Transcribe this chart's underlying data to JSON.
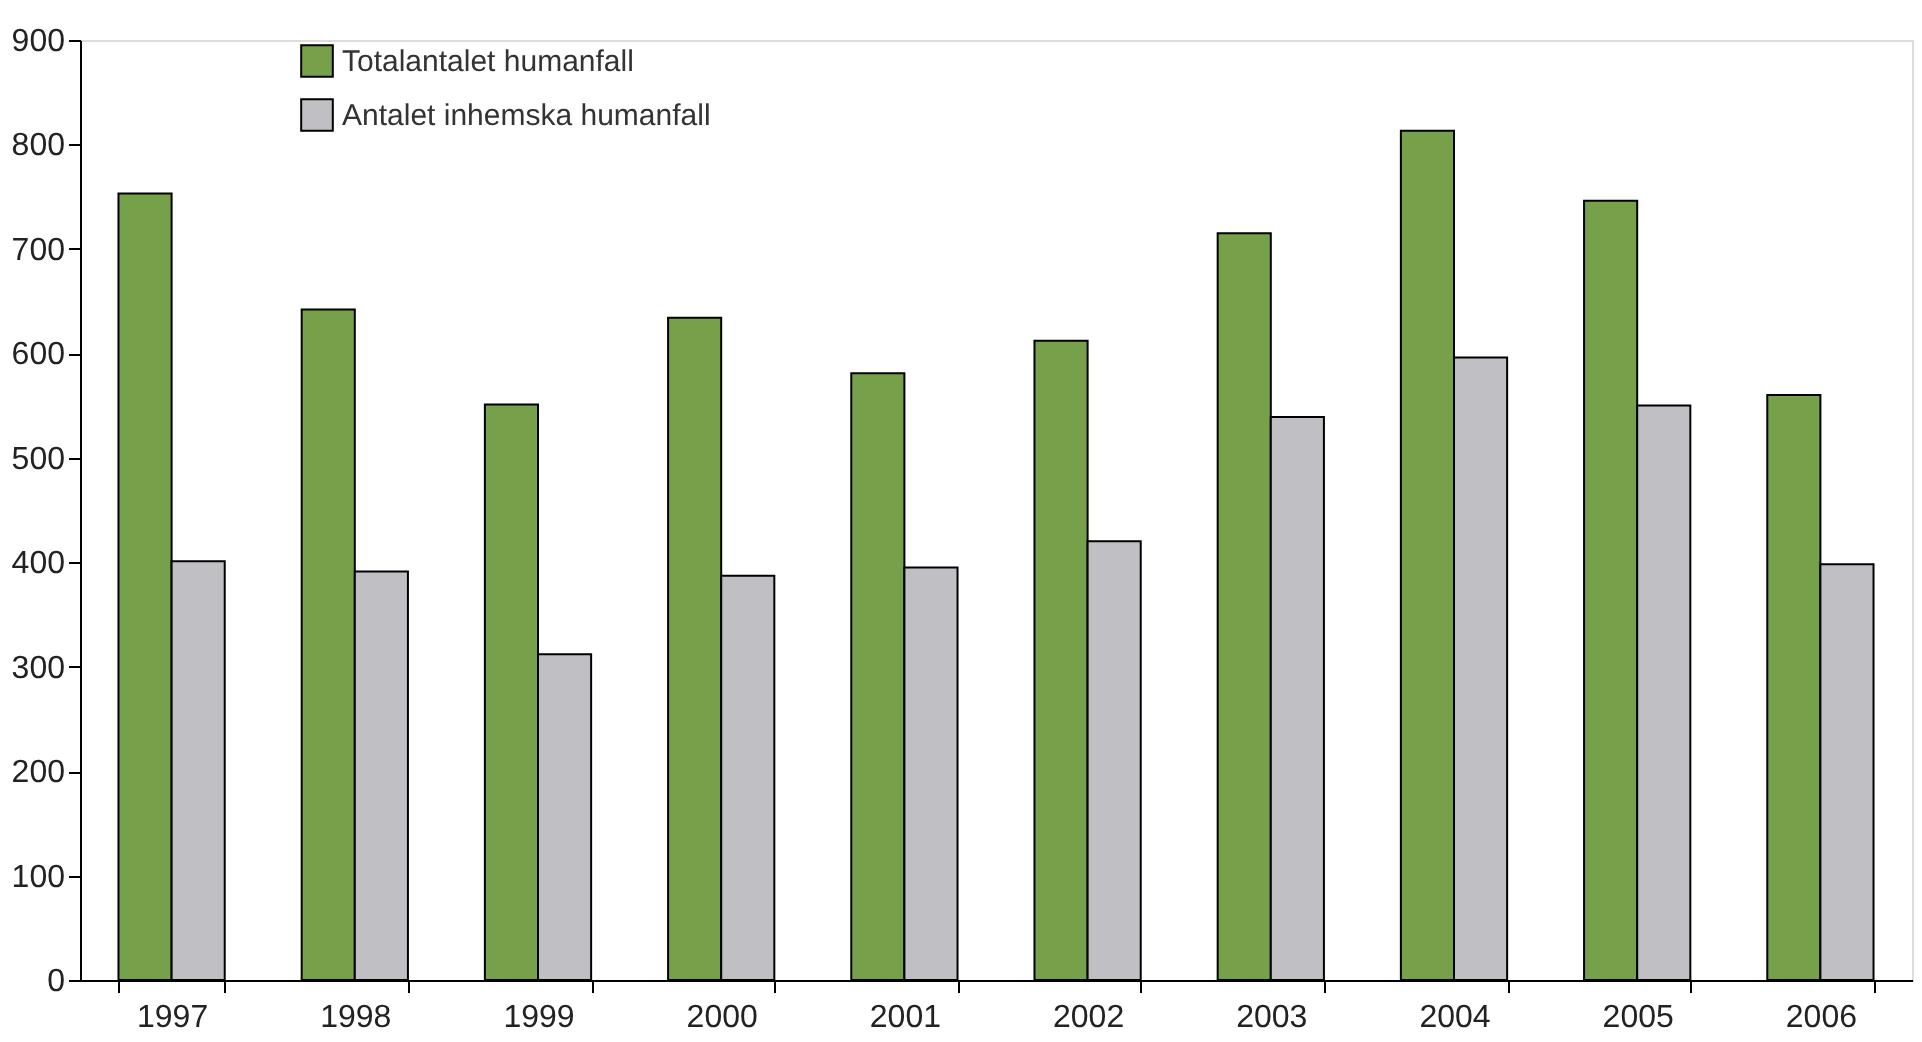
{
  "chart_data": {
    "type": "bar",
    "categories": [
      "1997",
      "1998",
      "1999",
      "2000",
      "2001",
      "2002",
      "2003",
      "2004",
      "2005",
      "2006"
    ],
    "series": [
      {
        "name": "Totalantalet humanfall",
        "color": "#76a04a",
        "values": [
          753,
          642,
          551,
          634,
          581,
          612,
          715,
          813,
          746,
          560
        ]
      },
      {
        "name": "Antalet inhemska humanfall",
        "color": "#c0c0c4",
        "values": [
          401,
          391,
          312,
          387,
          395,
          420,
          539,
          596,
          550,
          398
        ]
      }
    ],
    "ylim": [
      0,
      900
    ],
    "yticks": [
      0,
      100,
      200,
      300,
      400,
      500,
      600,
      700,
      800,
      900
    ],
    "grid": false,
    "legend": "top left"
  }
}
